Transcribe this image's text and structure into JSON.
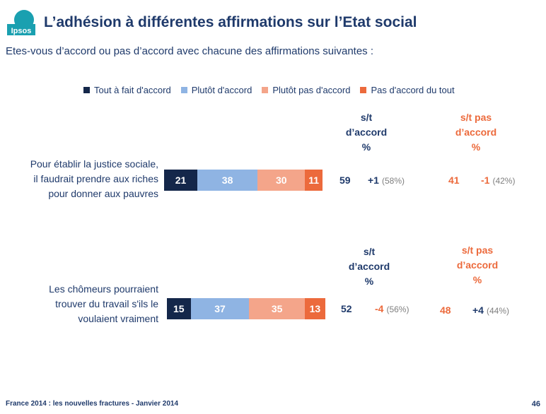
{
  "brand": {
    "logo_text": "Ipsos",
    "logo_color": "#1aa0b0"
  },
  "title": "L’adhésion à différentes affirmations sur l’Etat social",
  "subtitle": "Etes-vous d’accord ou pas d’accord avec chacune des affirmations suivantes :",
  "legend": [
    {
      "label": "Tout à fait d'accord",
      "color": "#14274a"
    },
    {
      "label": "Plutôt d'accord",
      "color": "#8fb4e3"
    },
    {
      "label": "Plutôt pas d'accord",
      "color": "#f4a58a"
    },
    {
      "label": "Pas d'accord du tout",
      "color": "#ec6a3c"
    }
  ],
  "columns": {
    "agree": {
      "line1": "s/t",
      "line2": "d’accord",
      "line3": "%"
    },
    "disagree": {
      "line1": "s/t pas",
      "line2": "d’accord",
      "line3": "%"
    }
  },
  "chart_data": {
    "type": "bar",
    "orientation": "horizontal-stacked",
    "categories": [
      "Pour établir la justice sociale, il faudrait prendre aux riches pour donner aux pauvres",
      "Les chômeurs pourraient trouver du travail s'ils le voulaient vraiment"
    ],
    "series": [
      {
        "name": "Tout à fait d'accord",
        "values": [
          21,
          15
        ]
      },
      {
        "name": "Plutôt d'accord",
        "values": [
          38,
          37
        ]
      },
      {
        "name": "Plutôt pas d'accord",
        "values": [
          30,
          35
        ]
      },
      {
        "name": "Pas d'accord du tout",
        "values": [
          11,
          13
        ]
      }
    ],
    "unit": "%"
  },
  "rows": [
    {
      "label_lines": [
        "Pour établir la justice sociale,",
        "il faudrait prendre aux riches",
        "pour donner aux pauvres"
      ],
      "agree_total": "59",
      "agree_delta": "+1",
      "agree_prev": "(58%)",
      "disagree_total": "41",
      "disagree_delta": "-1",
      "disagree_prev": "(42%)"
    },
    {
      "label_lines": [
        "Les chômeurs pourraient",
        "trouver du travail s'ils le",
        "voulaient vraiment"
      ],
      "agree_total": "52",
      "agree_delta": "-4",
      "agree_prev": "(56%)",
      "disagree_total": "48",
      "disagree_delta": "+4",
      "disagree_prev": "(44%)"
    }
  ],
  "footer": "France 2014 : les nouvelles fractures - Janvier 2014",
  "page_number": "46",
  "colors": {
    "dark_blue": "#1f3a6b",
    "orange": "#ec6a3c",
    "grey": "#7f7f7f"
  }
}
